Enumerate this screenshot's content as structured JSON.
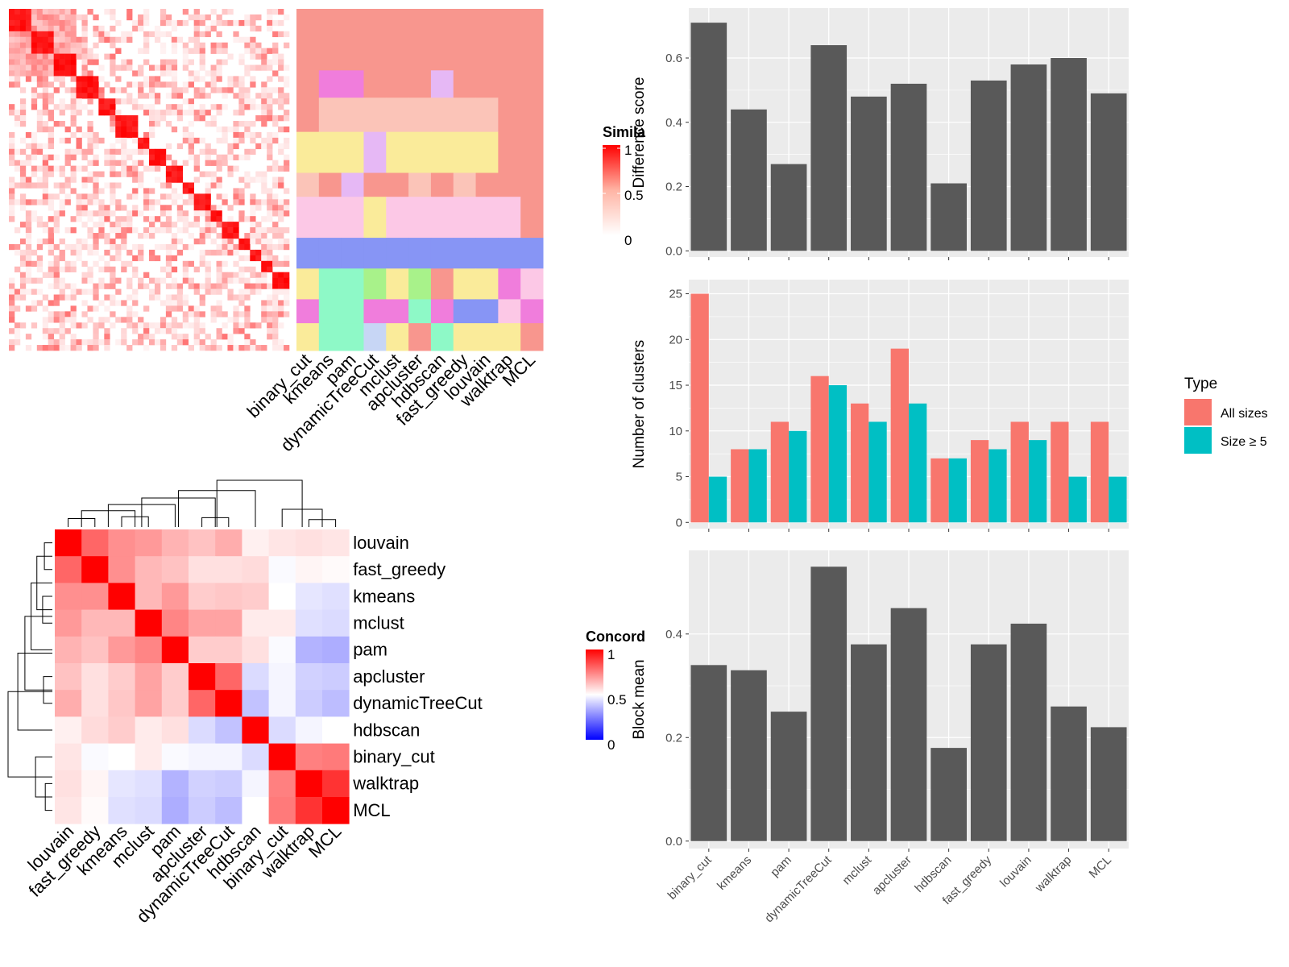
{
  "colors": {
    "panel_bg": "#ebebeb",
    "grid": "#ffffff",
    "bar": "#595959",
    "all_sizes": "#f8766d",
    "size_ge_5": "#00bfc4",
    "heat_high": "#ff0000",
    "heat_mid": "#ffffff",
    "heat_low": "#0000ff",
    "cluster_palette": [
      "#f8968e",
      "#fbc4b8",
      "#faeb9a",
      "#fcc8e6",
      "#8795f5",
      "#8ef9c7",
      "#f07ddc",
      "#a8f28a",
      "#c7d6f5",
      "#e6b8f5"
    ]
  },
  "top_left_panel": {
    "legend_title": "Simila",
    "legend_ticks": [
      "1",
      "0.5",
      "0"
    ],
    "method_labels": [
      "binary_cut",
      "kmeans",
      "pam",
      "dynamicTreeCut",
      "mclust",
      "apcluster",
      "hdbscan",
      "fast_greedy",
      "louvain",
      "walktrap",
      "MCL"
    ]
  },
  "concordance": {
    "legend_title": "Concord",
    "legend_ticks": [
      "1",
      "0.5",
      "0"
    ],
    "row_labels": [
      "louvain",
      "fast_greedy",
      "kmeans",
      "mclust",
      "pam",
      "apcluster",
      "dynamicTreeCut",
      "hdbscan",
      "binary_cut",
      "walktrap",
      "MCL"
    ],
    "col_labels": [
      "louvain",
      "fast_greedy",
      "kmeans",
      "mclust",
      "pam",
      "apcluster",
      "dynamicTreeCut",
      "hdbscan",
      "binary_cut",
      "walktrap",
      "MCL"
    ]
  },
  "chart_data": [
    {
      "type": "bar",
      "categories": [
        "binary_cut",
        "kmeans",
        "pam",
        "dynamicTreeCut",
        "mclust",
        "apcluster",
        "hdbscan",
        "fast_greedy",
        "louvain",
        "walktrap",
        "MCL"
      ],
      "values": [
        0.71,
        0.44,
        0.27,
        0.64,
        0.48,
        0.52,
        0.21,
        0.53,
        0.58,
        0.6,
        0.49
      ],
      "xlabel": "",
      "ylabel": "Difference score",
      "ylim": [
        0,
        0.74
      ],
      "yticks": [
        "0.0",
        "0.2",
        "0.4",
        "0.6"
      ],
      "grid": true
    },
    {
      "type": "bar",
      "categories": [
        "binary_cut",
        "kmeans",
        "pam",
        "dynamicTreeCut",
        "mclust",
        "apcluster",
        "hdbscan",
        "fast_greedy",
        "louvain",
        "walktrap",
        "MCL"
      ],
      "series": [
        {
          "name": "All sizes",
          "values": [
            25,
            8,
            11,
            16,
            13,
            19,
            7,
            9,
            11,
            11,
            11
          ]
        },
        {
          "name": "Size ≥ 5",
          "values": [
            5,
            8,
            10,
            15,
            11,
            13,
            7,
            8,
            9,
            5,
            5
          ]
        }
      ],
      "xlabel": "",
      "ylabel": "Number of clusters",
      "ylim": [
        0,
        26
      ],
      "yticks": [
        "0",
        "5",
        "10",
        "15",
        "20",
        "25"
      ],
      "legend_title": "Type",
      "legend_position": "right",
      "grid": true
    },
    {
      "type": "bar",
      "categories": [
        "binary_cut",
        "kmeans",
        "pam",
        "dynamicTreeCut",
        "mclust",
        "apcluster",
        "hdbscan",
        "fast_greedy",
        "louvain",
        "walktrap",
        "MCL"
      ],
      "values": [
        0.34,
        0.33,
        0.25,
        0.53,
        0.38,
        0.45,
        0.18,
        0.38,
        0.42,
        0.26,
        0.22
      ],
      "xlabel": "",
      "ylabel": "Block mean",
      "ylim": [
        0,
        0.55
      ],
      "yticks": [
        "0.0",
        "0.2",
        "0.4"
      ],
      "grid": true
    },
    {
      "type": "heatmap",
      "rows": [
        "louvain",
        "fast_greedy",
        "kmeans",
        "mclust",
        "pam",
        "apcluster",
        "dynamicTreeCut",
        "hdbscan",
        "binary_cut",
        "walktrap",
        "MCL"
      ],
      "cols": [
        "louvain",
        "fast_greedy",
        "kmeans",
        "mclust",
        "pam",
        "apcluster",
        "dynamicTreeCut",
        "hdbscan",
        "binary_cut",
        "walktrap",
        "MCL"
      ],
      "values": [
        [
          1.0,
          0.8,
          0.72,
          0.7,
          0.65,
          0.62,
          0.66,
          0.53,
          0.55,
          0.56,
          0.55
        ],
        [
          0.8,
          1.0,
          0.72,
          0.64,
          0.62,
          0.56,
          0.56,
          0.57,
          0.49,
          0.52,
          0.51
        ],
        [
          0.72,
          0.72,
          1.0,
          0.64,
          0.7,
          0.6,
          0.61,
          0.6,
          0.5,
          0.45,
          0.44
        ],
        [
          0.7,
          0.64,
          0.64,
          1.0,
          0.74,
          0.68,
          0.68,
          0.54,
          0.54,
          0.44,
          0.43
        ],
        [
          0.65,
          0.62,
          0.7,
          0.74,
          1.0,
          0.6,
          0.6,
          0.56,
          0.49,
          0.35,
          0.34
        ],
        [
          0.62,
          0.56,
          0.6,
          0.68,
          0.6,
          1.0,
          0.8,
          0.43,
          0.48,
          0.41,
          0.4
        ],
        [
          0.66,
          0.56,
          0.61,
          0.68,
          0.6,
          0.8,
          1.0,
          0.38,
          0.48,
          0.4,
          0.37
        ],
        [
          0.53,
          0.57,
          0.6,
          0.54,
          0.56,
          0.43,
          0.38,
          1.0,
          0.43,
          0.48,
          0.5
        ],
        [
          0.55,
          0.49,
          0.5,
          0.54,
          0.49,
          0.48,
          0.48,
          0.43,
          1.0,
          0.75,
          0.76
        ],
        [
          0.56,
          0.52,
          0.45,
          0.44,
          0.35,
          0.41,
          0.4,
          0.48,
          0.75,
          1.0,
          0.9
        ],
        [
          0.55,
          0.51,
          0.44,
          0.43,
          0.34,
          0.4,
          0.37,
          0.5,
          0.76,
          0.9,
          1.0
        ]
      ],
      "legend_title": "Concord",
      "color_range": [
        0,
        1
      ]
    }
  ],
  "type_legend": {
    "title": "Type",
    "items": [
      {
        "label": "All sizes",
        "color": "#f8766d"
      },
      {
        "label": "Size ≥ 5",
        "color": "#00bfc4"
      }
    ]
  }
}
